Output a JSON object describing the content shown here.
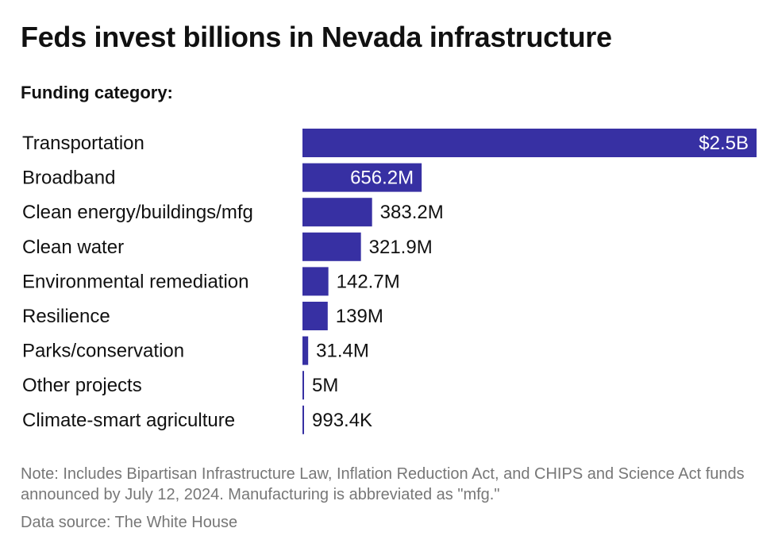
{
  "title": "Feds invest billions in Nevada infrastructure",
  "subtitle": "Funding category:",
  "note": "Note: Includes Bipartisan Infrastructure Law, Inflation Reduction Act, and CHIPS and Science Act funds announced by July 12, 2024. Manufacturing is abbreviated as \"mfg.\"",
  "source": "Data source: The White House",
  "colors": {
    "bar": "#3730a3",
    "label_inside": "#ffffff",
    "label_outside": "#111111"
  },
  "chart_data": {
    "type": "bar",
    "orientation": "horizontal",
    "title": "Feds invest billions in Nevada infrastructure",
    "subtitle": "Funding category:",
    "categories": [
      "Transportation",
      "Broadband",
      "Clean energy/buildings/mfg",
      "Clean water",
      "Environmental remediation",
      "Resilience",
      "Parks/conservation",
      "Other projects",
      "Climate-smart agriculture"
    ],
    "values": [
      2500000000,
      656200000,
      383200000,
      321900000,
      142700000,
      139000000,
      31400000,
      5000000,
      993400
    ],
    "value_labels": [
      "$2.5B",
      "656.2M",
      "383.2M",
      "321.9M",
      "142.7M",
      "139M",
      "31.4M",
      "5M",
      "993.4K"
    ],
    "xlim": [
      0,
      2500000000
    ],
    "grid": false,
    "legend": "none"
  }
}
